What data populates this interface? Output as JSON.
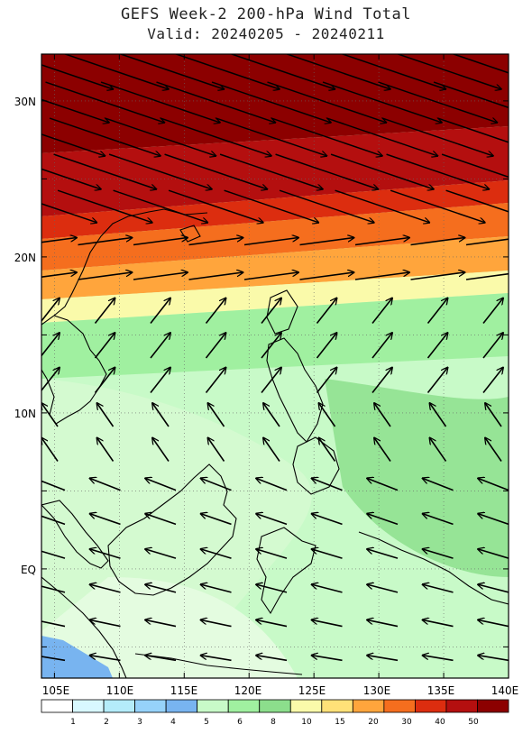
{
  "title": "GEFS Week-2 200-hPa Wind Total",
  "subtitle": "Valid: 20240205 - 20240211",
  "map": {
    "lon_range": [
      104,
      140
    ],
    "lat_range": [
      -7,
      33
    ],
    "lon_ticks": [
      "105E",
      "110E",
      "115E",
      "120E",
      "125E",
      "130E",
      "135E",
      "140E"
    ],
    "lat_ticks": [
      "30N",
      "20N",
      "10N",
      "EQ"
    ]
  },
  "colorbar": {
    "labels": [
      "1",
      "2",
      "3",
      "4",
      "5",
      "6",
      "8",
      "10",
      "15",
      "20",
      "30",
      "40",
      "50"
    ],
    "colors": [
      "#ffffff",
      "#d8f8ff",
      "#b4ecfa",
      "#96d2fa",
      "#78b4f0",
      "#c8fac8",
      "#a0f0a0",
      "#8cde8c",
      "#fafaaa",
      "#ffe178",
      "#ffa53c",
      "#f56e1e",
      "#dc2d0f",
      "#b40f0f",
      "#8c0000"
    ]
  },
  "chart_data": {
    "type": "heatmap",
    "variable": "200-hPa Wind Total",
    "units_label": "",
    "bands": [
      {
        "lat_from": 33,
        "lat_to": 27,
        "category": ">50"
      },
      {
        "lat_from": 27,
        "lat_to": 23,
        "category": "40-50"
      },
      {
        "lat_from": 23,
        "lat_to": 21,
        "category": "30-40"
      },
      {
        "lat_from": 21,
        "lat_to": 19,
        "category": "20-30"
      },
      {
        "lat_from": 19,
        "lat_to": 17,
        "category": "15-20"
      },
      {
        "lat_from": 17,
        "lat_to": 15,
        "category": "10-15"
      },
      {
        "lat_from": 15,
        "lat_to": -7,
        "category": "5-15"
      }
    ]
  }
}
